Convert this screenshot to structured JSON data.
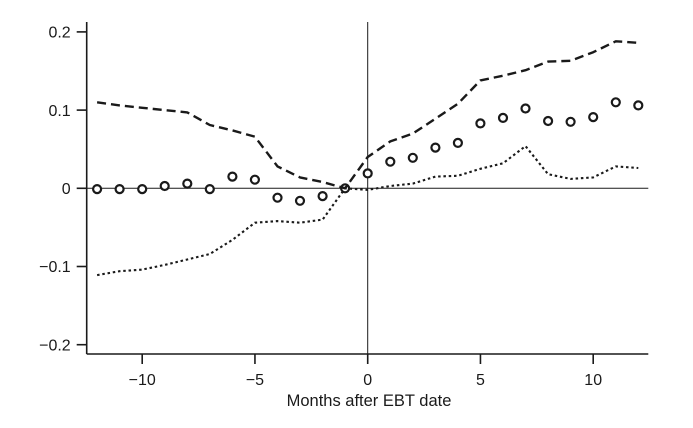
{
  "figure": {
    "background": "#ffffff",
    "ink": "#1a1a1a"
  },
  "chart_data": {
    "type": "scatter",
    "subtype": "event-study with confidence bands",
    "title": "",
    "xlabel": "Months after EBT date",
    "ylabel": "",
    "grid": false,
    "legend_position": "none",
    "xlim": [
      -12.5,
      12.45
    ],
    "ylim": [
      -0.2125,
      0.213
    ],
    "x_ticks": [
      {
        "value": -10,
        "label": "−10"
      },
      {
        "value": -5,
        "label": "−5"
      },
      {
        "value": 0,
        "label": "0"
      },
      {
        "value": 5,
        "label": "5"
      },
      {
        "value": 10,
        "label": "10"
      }
    ],
    "y_ticks": [
      {
        "value": 0.2,
        "label": "0.2"
      },
      {
        "value": 0.1,
        "label": "0.1"
      },
      {
        "value": 0,
        "label": "0"
      },
      {
        "value": -0.1,
        "label": "−0.1"
      },
      {
        "value": -0.2,
        "label": "−0.2"
      }
    ],
    "reference_lines": {
      "vertical_at_x": 0,
      "horizontal_at_y": 0
    },
    "months": [
      -12,
      -11,
      -10,
      -9,
      -8,
      -7,
      -6,
      -5,
      -4,
      -3,
      -2,
      -1,
      0,
      1,
      2,
      3,
      4,
      5,
      6,
      7,
      8,
      9,
      10,
      11,
      12
    ],
    "series": [
      {
        "name": "point-estimates",
        "marker": "open-circle",
        "line": "none",
        "values": [
          -0.001,
          -0.001,
          -0.001,
          0.003,
          0.006,
          -0.001,
          0.015,
          0.011,
          -0.012,
          -0.016,
          -0.01,
          0.0,
          0.019,
          0.034,
          0.039,
          0.052,
          0.058,
          0.083,
          0.09,
          0.102,
          0.086,
          0.085,
          0.091,
          0.11,
          0.106
        ]
      },
      {
        "name": "upper-confidence-band",
        "marker": "none",
        "line": "dashed",
        "values": [
          0.11,
          0.106,
          0.103,
          0.1,
          0.097,
          0.081,
          0.074,
          0.066,
          0.028,
          0.014,
          0.008,
          0.0,
          0.04,
          0.06,
          0.07,
          0.089,
          0.108,
          0.138,
          0.144,
          0.151,
          0.162,
          0.163,
          0.174,
          0.188,
          0.186
        ]
      },
      {
        "name": "lower-confidence-band",
        "marker": "none",
        "line": "dotted",
        "values": [
          -0.111,
          -0.106,
          -0.104,
          -0.098,
          -0.091,
          -0.084,
          -0.066,
          -0.044,
          -0.042,
          -0.044,
          -0.04,
          0.0,
          -0.002,
          0.003,
          0.006,
          0.015,
          0.016,
          0.025,
          0.032,
          0.054,
          0.018,
          0.012,
          0.014,
          0.028,
          0.026
        ]
      }
    ]
  }
}
